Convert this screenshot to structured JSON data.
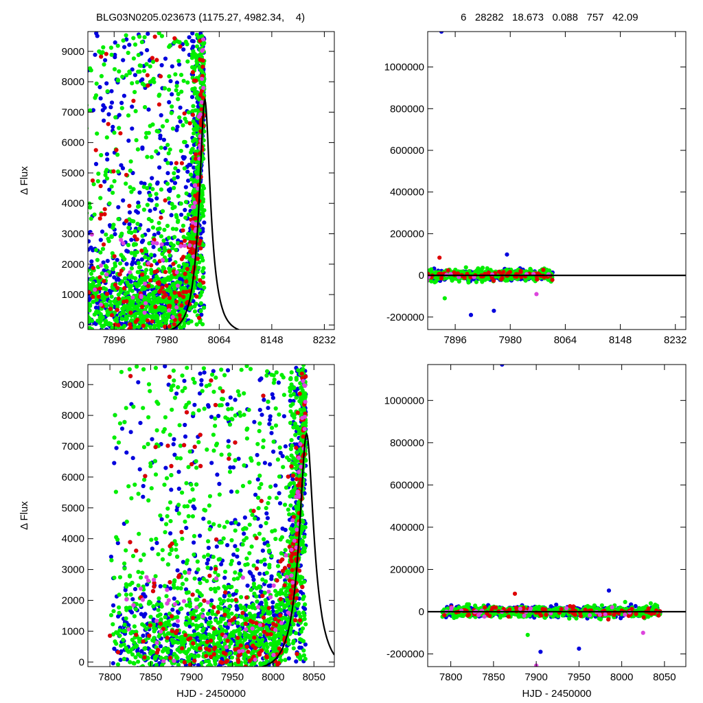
{
  "header": {
    "left_text": "BLG03N0205.023673 (1175.27, 4982.34,    4)",
    "right_text": "6   28282   18.673   0.088   757   42.09"
  },
  "chart_data": [
    {
      "type": "scatter",
      "panel": "top-left",
      "xlabel": "",
      "ylabel": "Δ Flux",
      "xlim": [
        7854,
        8248
      ],
      "ylim": [
        -150,
        9650
      ],
      "xticks": [
        7896,
        7980,
        8064,
        8148,
        8232
      ],
      "yticks": [
        0,
        1000,
        2000,
        3000,
        4000,
        5000,
        6000,
        7000,
        8000,
        9000
      ],
      "tick_labels_x": [
        "7896",
        "7980",
        "8064",
        "8148",
        "8232"
      ],
      "tick_labels_y": [
        "0",
        "1000",
        "2000",
        "3000",
        "4000",
        "5000",
        "6000",
        "7000",
        "8000",
        "9000"
      ],
      "series": [
        {
          "color": "#0000dd",
          "count": 1200
        },
        {
          "color": "#00ee00",
          "count": 1600
        },
        {
          "color": "#dd0000",
          "count": 220
        },
        {
          "color": "#dd44dd",
          "count": 60
        }
      ],
      "model_curve": {
        "t0": 8041,
        "peak": 7400,
        "u0": 0.4,
        "tE": 22,
        "baseline_shift": -300
      }
    },
    {
      "type": "scatter",
      "panel": "top-right",
      "xlabel": "",
      "ylabel": "",
      "xlim": [
        7854,
        8248
      ],
      "ylim": [
        -260000,
        1170000
      ],
      "xticks": [
        7896,
        7980,
        8064,
        8148,
        8232
      ],
      "yticks": [
        -200000,
        0,
        200000,
        400000,
        600000,
        800000,
        1000000
      ],
      "tick_labels_x": [
        "7896",
        "7980",
        "8064",
        "8148",
        "8232"
      ],
      "tick_labels_y": [
        "-200000",
        "0",
        "200000",
        "400000",
        "600000",
        "800000",
        "1000000"
      ],
      "series": [
        {
          "color": "#0000dd",
          "count": 400
        },
        {
          "color": "#00ee00",
          "count": 600
        },
        {
          "color": "#dd0000",
          "count": 80
        },
        {
          "color": "#dd44dd",
          "count": 20
        }
      ],
      "outliers": [
        {
          "x": 7875,
          "y": 1170000,
          "color": "#0000dd"
        },
        {
          "x": 7920,
          "y": -190000,
          "color": "#0000dd"
        },
        {
          "x": 7955,
          "y": -170000,
          "color": "#0000dd"
        },
        {
          "x": 7880,
          "y": -110000,
          "color": "#00ee00"
        },
        {
          "x": 7975,
          "y": 100000,
          "color": "#0000dd"
        },
        {
          "x": 7872,
          "y": 85000,
          "color": "#dd0000"
        },
        {
          "x": 8020,
          "y": -90000,
          "color": "#dd44dd"
        }
      ],
      "model_curve": {
        "t0": 8041,
        "peak": 7400,
        "u0": 0.4,
        "tE": 22,
        "baseline_shift": -300
      }
    },
    {
      "type": "scatter",
      "panel": "bottom-left",
      "xlabel": "HJD - 2450000",
      "ylabel": "Δ Flux",
      "xlim": [
        7773,
        8075
      ],
      "ylim": [
        -150,
        9650
      ],
      "xticks": [
        7800,
        7850,
        7900,
        7950,
        8000,
        8050
      ],
      "yticks": [
        0,
        1000,
        2000,
        3000,
        4000,
        5000,
        6000,
        7000,
        8000,
        9000
      ],
      "tick_labels_x": [
        "7800",
        "7850",
        "7900",
        "7950",
        "8000",
        "8050"
      ],
      "tick_labels_y": [
        "0",
        "1000",
        "2000",
        "3000",
        "4000",
        "5000",
        "6000",
        "7000",
        "8000",
        "9000"
      ],
      "series": [
        {
          "color": "#0000dd",
          "count": 1400
        },
        {
          "color": "#00ee00",
          "count": 1800
        },
        {
          "color": "#dd0000",
          "count": 260
        },
        {
          "color": "#dd44dd",
          "count": 70
        }
      ],
      "model_curve": {
        "t0": 8041,
        "peak": 7400,
        "u0": 0.4,
        "tE": 22,
        "baseline_shift": -300
      }
    },
    {
      "type": "scatter",
      "panel": "bottom-right",
      "xlabel": "HJD - 2450000",
      "ylabel": "",
      "xlim": [
        7773,
        8075
      ],
      "ylim": [
        -260000,
        1170000
      ],
      "xticks": [
        7800,
        7850,
        7900,
        7950,
        8000,
        8050
      ],
      "yticks": [
        -200000,
        0,
        200000,
        400000,
        600000,
        800000,
        1000000
      ],
      "tick_labels_x": [
        "7800",
        "7850",
        "7900",
        "7950",
        "8000",
        "8050"
      ],
      "tick_labels_y": [
        "-200000",
        "0",
        "200000",
        "400000",
        "600000",
        "800000",
        "1000000"
      ],
      "series": [
        {
          "color": "#0000dd",
          "count": 450
        },
        {
          "color": "#00ee00",
          "count": 650
        },
        {
          "color": "#dd0000",
          "count": 90
        },
        {
          "color": "#dd44dd",
          "count": 25
        }
      ],
      "outliers": [
        {
          "x": 7860,
          "y": 1170000,
          "color": "#0000dd"
        },
        {
          "x": 7905,
          "y": -190000,
          "color": "#0000dd"
        },
        {
          "x": 7950,
          "y": -175000,
          "color": "#0000dd"
        },
        {
          "x": 7890,
          "y": -110000,
          "color": "#00ee00"
        },
        {
          "x": 7985,
          "y": 100000,
          "color": "#0000dd"
        },
        {
          "x": 7875,
          "y": 85000,
          "color": "#dd0000"
        },
        {
          "x": 8025,
          "y": -100000,
          "color": "#dd44dd"
        },
        {
          "x": 7900,
          "y": -255000,
          "color": "#dd44dd"
        }
      ],
      "model_curve": {
        "t0": 8041,
        "peak": 7400,
        "u0": 0.4,
        "tE": 22,
        "baseline_shift": -300
      }
    }
  ]
}
